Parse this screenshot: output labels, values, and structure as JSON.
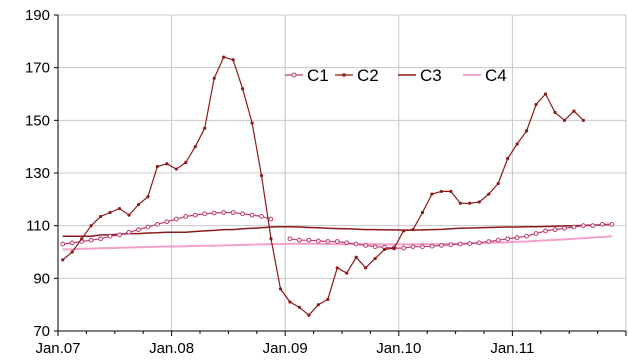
{
  "chart_data": {
    "type": "line",
    "title": "",
    "xlabel": "",
    "ylabel": "",
    "ylim": [
      70,
      190
    ],
    "y_ticks": [
      70,
      90,
      110,
      130,
      150,
      170,
      190
    ],
    "x_ticks": [
      "Jan.07",
      "Jan.08",
      "Jan.09",
      "Jan.10",
      "Jan.11"
    ],
    "grid": true,
    "legend_position": "top-right",
    "x": [
      "Jan.07",
      "Feb.07",
      "Mar.07",
      "Apr.07",
      "May.07",
      "Jun.07",
      "Jul.07",
      "Aug.07",
      "Sep.07",
      "Oct.07",
      "Nov.07",
      "Dec.07",
      "Jan.08",
      "Feb.08",
      "Mar.08",
      "Apr.08",
      "May.08",
      "Jun.08",
      "Jul.08",
      "Aug.08",
      "Sep.08",
      "Oct.08",
      "Nov.08",
      "Dec.08",
      "Jan.09",
      "Feb.09",
      "Mar.09",
      "Apr.09",
      "May.09",
      "Jun.09",
      "Jul.09",
      "Aug.09",
      "Sep.09",
      "Oct.09",
      "Nov.09",
      "Dec.09",
      "Jan.10",
      "Feb.10",
      "Mar.10",
      "Apr.10",
      "May.10",
      "Jun.10",
      "Jul.10",
      "Aug.10",
      "Sep.10",
      "Oct.10",
      "Nov.10",
      "Dec.10",
      "Jan.11",
      "Feb.11",
      "Mar.11",
      "Apr.11",
      "May.11",
      "Jun.11",
      "Jul.11",
      "Aug.11",
      "Sep.11",
      "Oct.11",
      "Nov.11",
      "Dec.11"
    ],
    "series": [
      {
        "name": "C1",
        "color": "#c03a70",
        "marker": "open-circle",
        "values": [
          103,
          103.5,
          104,
          104.5,
          105,
          106,
          106.5,
          107.5,
          108.5,
          109.5,
          110.5,
          111.5,
          112.5,
          113.5,
          114,
          114.5,
          114.8,
          115,
          115,
          114.5,
          114,
          113.5,
          112.5,
          null,
          105,
          104.5,
          104.5,
          104.2,
          104,
          104,
          103.5,
          103,
          102.5,
          102,
          101.8,
          101.5,
          101.5,
          102,
          102,
          102.2,
          102.5,
          102.8,
          103,
          103.2,
          103.5,
          104,
          104.5,
          105,
          105.5,
          106,
          107,
          108,
          108.5,
          109,
          109.5,
          110,
          110,
          110.5,
          110.5,
          null
        ]
      },
      {
        "name": "C2",
        "color": "#8b1a1a",
        "marker": "dot",
        "values": [
          97,
          100,
          105,
          110,
          113.5,
          115,
          116.5,
          114,
          118,
          121,
          132.5,
          133.5,
          131.5,
          134,
          140,
          147,
          166,
          174,
          173,
          162,
          149,
          129,
          105,
          86,
          81,
          79,
          76,
          80,
          82,
          94,
          92,
          98,
          94,
          97.5,
          101,
          101.5,
          108,
          108.5,
          115,
          122,
          123,
          123,
          118.5,
          118.5,
          119,
          122,
          126,
          135.5,
          141,
          146,
          156,
          160,
          153,
          150,
          153.5,
          150,
          null,
          null,
          null,
          null
        ]
      },
      {
        "name": "C3",
        "color": "#8b1a1a",
        "marker": "none",
        "values": [
          106,
          106,
          106,
          106,
          106.5,
          106.5,
          106.8,
          107,
          107,
          107.2,
          107.3,
          107.5,
          107.5,
          107.5,
          107.8,
          108,
          108.2,
          108.5,
          108.5,
          108.8,
          109,
          109.2,
          109.5,
          109.6,
          109.6,
          109.5,
          109.3,
          109.2,
          109,
          108.9,
          108.8,
          108.7,
          108.5,
          108.5,
          108.4,
          108.4,
          108.3,
          108.3,
          108.4,
          108.5,
          108.6,
          108.8,
          109,
          109.1,
          109.2,
          109.3,
          109.4,
          109.5,
          109.5,
          109.6,
          109.6,
          109.7,
          109.8,
          109.9,
          110,
          110.1,
          110.2,
          110.3,
          110.5,
          null
        ]
      },
      {
        "name": "C4",
        "color": "#f2a0c8",
        "marker": "none",
        "values": [
          101,
          101,
          101.2,
          101.3,
          101.4,
          101.5,
          101.6,
          101.7,
          101.8,
          101.9,
          102,
          102.1,
          102.1,
          102.2,
          102.3,
          102.4,
          102.4,
          102.5,
          102.6,
          102.7,
          102.8,
          102.9,
          103,
          103,
          103.1,
          103.1,
          103.1,
          103.1,
          103,
          103,
          103,
          103,
          103,
          103,
          102.9,
          102.9,
          102.9,
          102.9,
          103,
          103,
          103,
          103.1,
          103.2,
          103.3,
          103.4,
          103.5,
          103.6,
          103.7,
          103.9,
          104,
          104.2,
          104.4,
          104.6,
          104.8,
          105,
          105.2,
          105.5,
          105.7,
          106,
          null
        ]
      }
    ]
  }
}
